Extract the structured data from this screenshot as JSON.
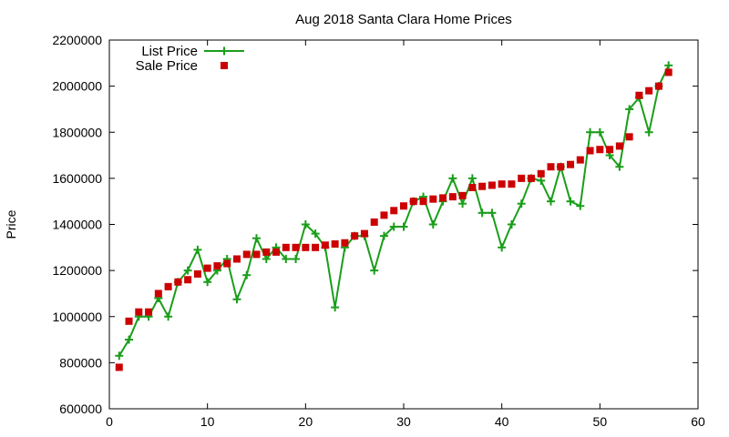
{
  "chart_data": {
    "type": "scatter",
    "title": "Aug 2018 Santa Clara Home Prices",
    "xlabel": "",
    "ylabel": "Price",
    "xlim": [
      0,
      60
    ],
    "ylim": [
      600000,
      2200000
    ],
    "xticks": [
      0,
      10,
      20,
      30,
      40,
      50,
      60
    ],
    "yticks": [
      600000,
      800000,
      1000000,
      1200000,
      1400000,
      1600000,
      1800000,
      2000000,
      2200000
    ],
    "grid": false,
    "legend_position": "top-left",
    "series": [
      {
        "name": "List Price",
        "style": "linespoints",
        "marker": "plus",
        "color": "#1a9e1a",
        "x": [
          1,
          2,
          3,
          4,
          5,
          6,
          7,
          8,
          9,
          10,
          11,
          12,
          13,
          14,
          15,
          16,
          17,
          18,
          19,
          20,
          21,
          22,
          23,
          24,
          25,
          26,
          27,
          28,
          29,
          30,
          31,
          32,
          33,
          34,
          35,
          36,
          37,
          38,
          39,
          40,
          41,
          42,
          43,
          44,
          45,
          46,
          47,
          48,
          49,
          50,
          51,
          52,
          53,
          54,
          55,
          56,
          57
        ],
        "values": [
          830000,
          900000,
          1000000,
          1000000,
          1080000,
          1000000,
          1150000,
          1200000,
          1290000,
          1150000,
          1200000,
          1250000,
          1075000,
          1180000,
          1340000,
          1250000,
          1300000,
          1250000,
          1250000,
          1400000,
          1360000,
          1300000,
          1040000,
          1300000,
          1350000,
          1350000,
          1200000,
          1350000,
          1390000,
          1390000,
          1500000,
          1520000,
          1400000,
          1500000,
          1600000,
          1490000,
          1600000,
          1450000,
          1450000,
          1300000,
          1400000,
          1490000,
          1600000,
          1590000,
          1500000,
          1650000,
          1500000,
          1480000,
          1800000,
          1800000,
          1700000,
          1650000,
          1900000,
          1950000,
          1800000,
          2000000,
          2090000
        ]
      },
      {
        "name": "Sale Price",
        "style": "points",
        "marker": "square",
        "color": "#cc0000",
        "x": [
          1,
          2,
          3,
          4,
          5,
          6,
          7,
          8,
          9,
          10,
          11,
          12,
          13,
          14,
          15,
          16,
          17,
          18,
          19,
          20,
          21,
          22,
          23,
          24,
          25,
          26,
          27,
          28,
          29,
          30,
          31,
          32,
          33,
          34,
          35,
          36,
          37,
          38,
          39,
          40,
          41,
          42,
          43,
          44,
          45,
          46,
          47,
          48,
          49,
          50,
          51,
          52,
          53,
          54,
          55,
          56,
          57
        ],
        "values": [
          780000,
          980000,
          1020000,
          1020000,
          1100000,
          1130000,
          1150000,
          1160000,
          1185000,
          1210000,
          1220000,
          1230000,
          1250000,
          1270000,
          1270000,
          1280000,
          1280000,
          1300000,
          1300000,
          1300000,
          1300000,
          1310000,
          1315000,
          1320000,
          1350000,
          1360000,
          1410000,
          1440000,
          1460000,
          1480000,
          1500000,
          1500000,
          1510000,
          1515000,
          1520000,
          1525000,
          1560000,
          1565000,
          1570000,
          1575000,
          1575000,
          1600000,
          1600000,
          1620000,
          1650000,
          1650000,
          1660000,
          1680000,
          1720000,
          1725000,
          1725000,
          1740000,
          1780000,
          1960000,
          1980000,
          2000000,
          2060000
        ]
      }
    ]
  }
}
